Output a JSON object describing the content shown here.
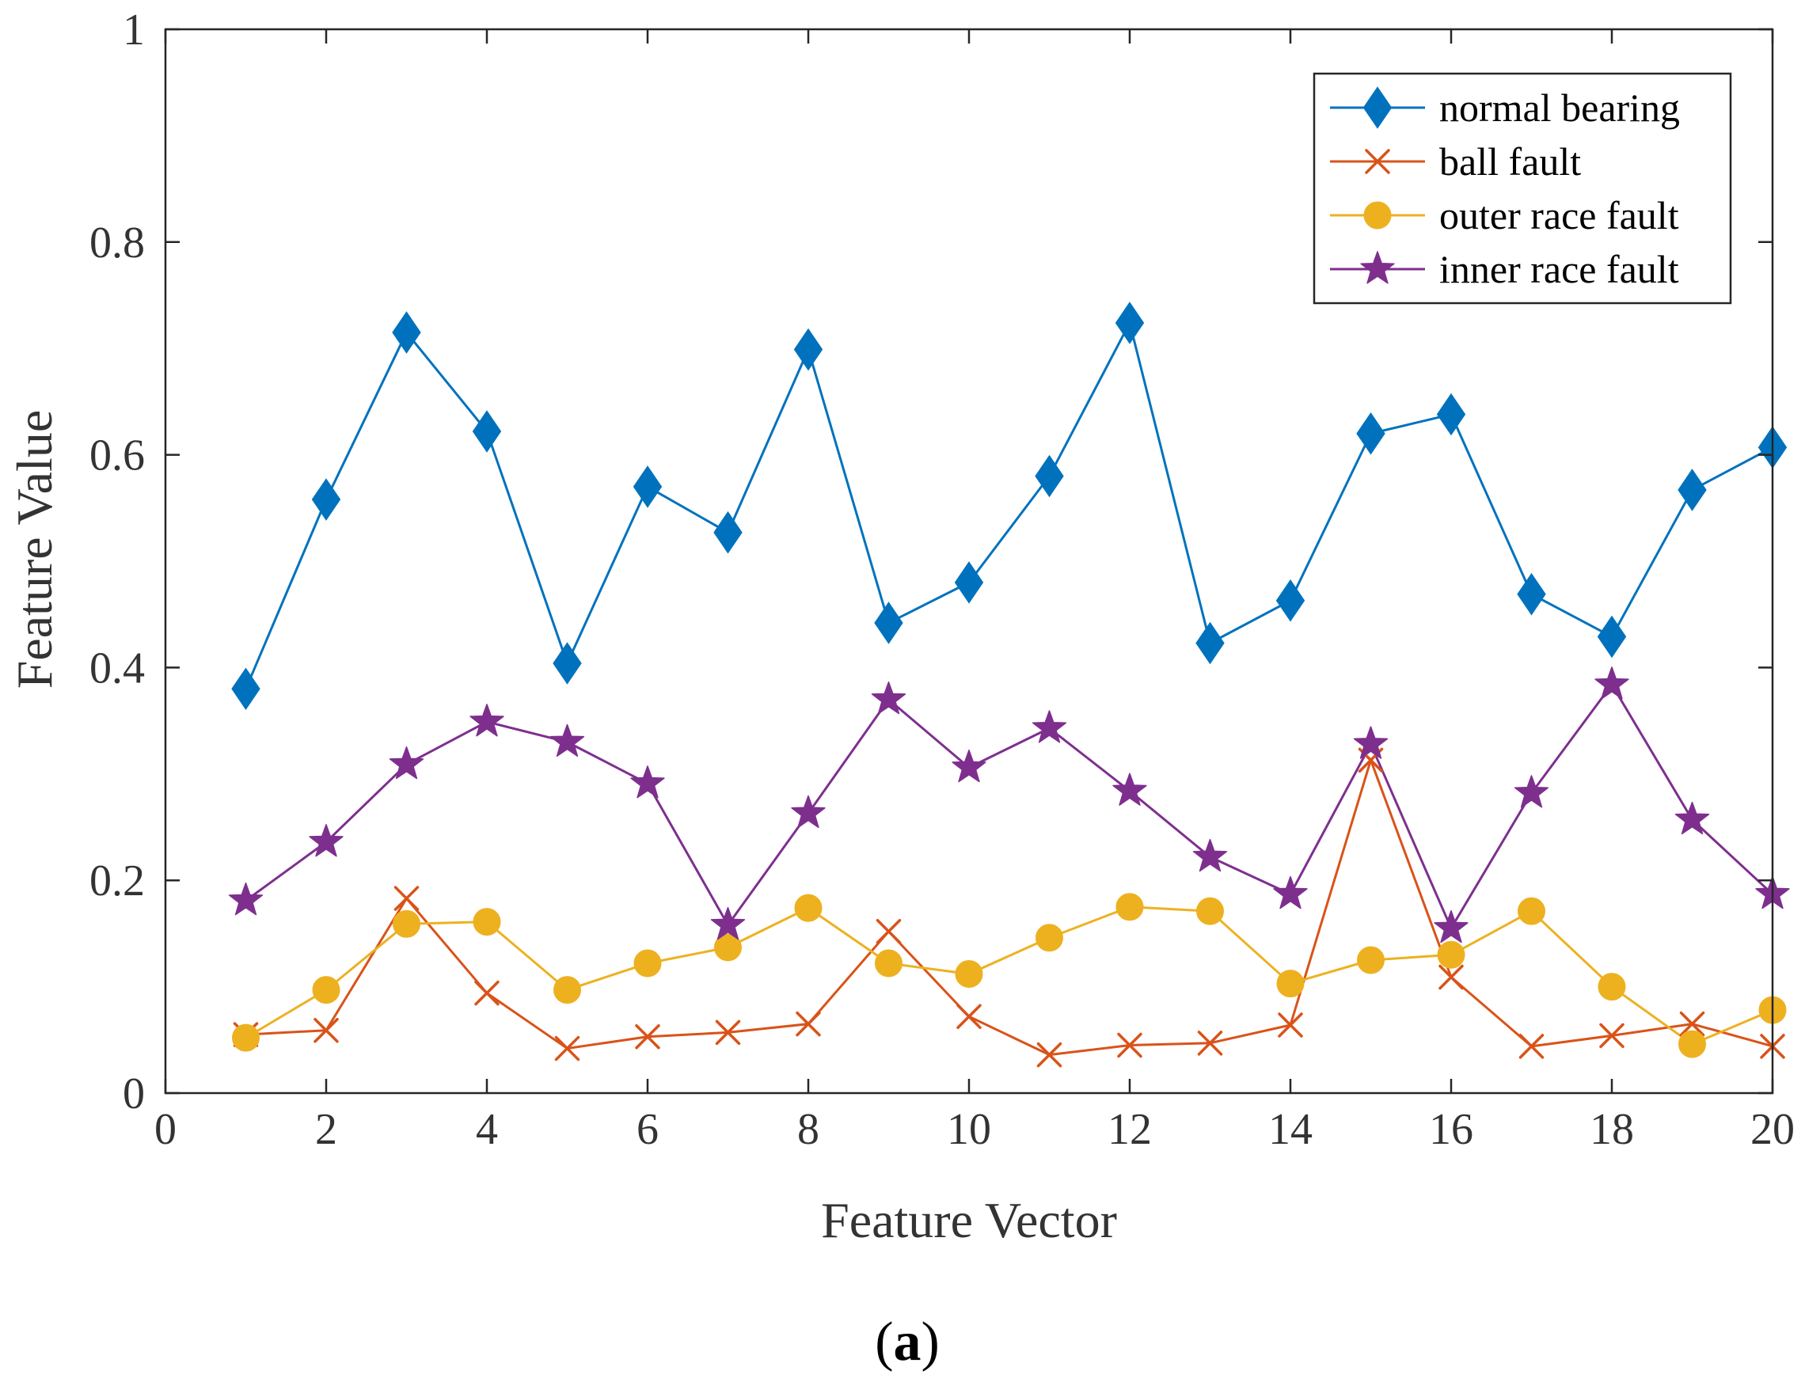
{
  "chart_data": {
    "type": "line",
    "xlabel": "Feature Vector",
    "ylabel": "Feature Value",
    "panel_label": {
      "open": "(",
      "letter": "a",
      "close": ")"
    },
    "xlim": [
      0,
      20
    ],
    "ylim": [
      0,
      1
    ],
    "xticks": [
      "0",
      "2",
      "4",
      "6",
      "8",
      "10",
      "12",
      "14",
      "16",
      "18",
      "20"
    ],
    "yticks": [
      "0",
      "0.2",
      "0.4",
      "0.6",
      "0.8",
      "1"
    ],
    "grid": false,
    "legend_position": "top-right",
    "x": [
      1,
      2,
      3,
      4,
      5,
      6,
      7,
      8,
      9,
      10,
      11,
      12,
      13,
      14,
      15,
      16,
      17,
      18,
      19,
      20
    ],
    "series": [
      {
        "name": "normal bearing",
        "color": "#0072BD",
        "marker": "diamond",
        "values": [
          0.38,
          0.558,
          0.715,
          0.622,
          0.404,
          0.57,
          0.527,
          0.699,
          0.442,
          0.48,
          0.58,
          0.724,
          0.423,
          0.463,
          0.62,
          0.638,
          0.469,
          0.429,
          0.567,
          0.607
        ]
      },
      {
        "name": "ball fault",
        "color": "#D95319",
        "marker": "x",
        "values": [
          0.055,
          0.059,
          0.183,
          0.094,
          0.042,
          0.053,
          0.057,
          0.065,
          0.152,
          0.072,
          0.036,
          0.045,
          0.047,
          0.064,
          0.313,
          0.109,
          0.044,
          0.054,
          0.065,
          0.044
        ]
      },
      {
        "name": "outer race fault",
        "color": "#EDB120",
        "marker": "circle",
        "values": [
          0.052,
          0.097,
          0.159,
          0.161,
          0.097,
          0.122,
          0.137,
          0.174,
          0.122,
          0.112,
          0.146,
          0.175,
          0.171,
          0.103,
          0.125,
          0.13,
          0.171,
          0.1,
          0.046,
          0.078
        ]
      },
      {
        "name": "inner race fault",
        "color": "#7E2F8E",
        "marker": "star",
        "values": [
          0.181,
          0.236,
          0.309,
          0.349,
          0.33,
          0.291,
          0.158,
          0.263,
          0.37,
          0.306,
          0.343,
          0.284,
          0.222,
          0.187,
          0.328,
          0.155,
          0.282,
          0.384,
          0.257,
          0.187
        ]
      }
    ]
  }
}
